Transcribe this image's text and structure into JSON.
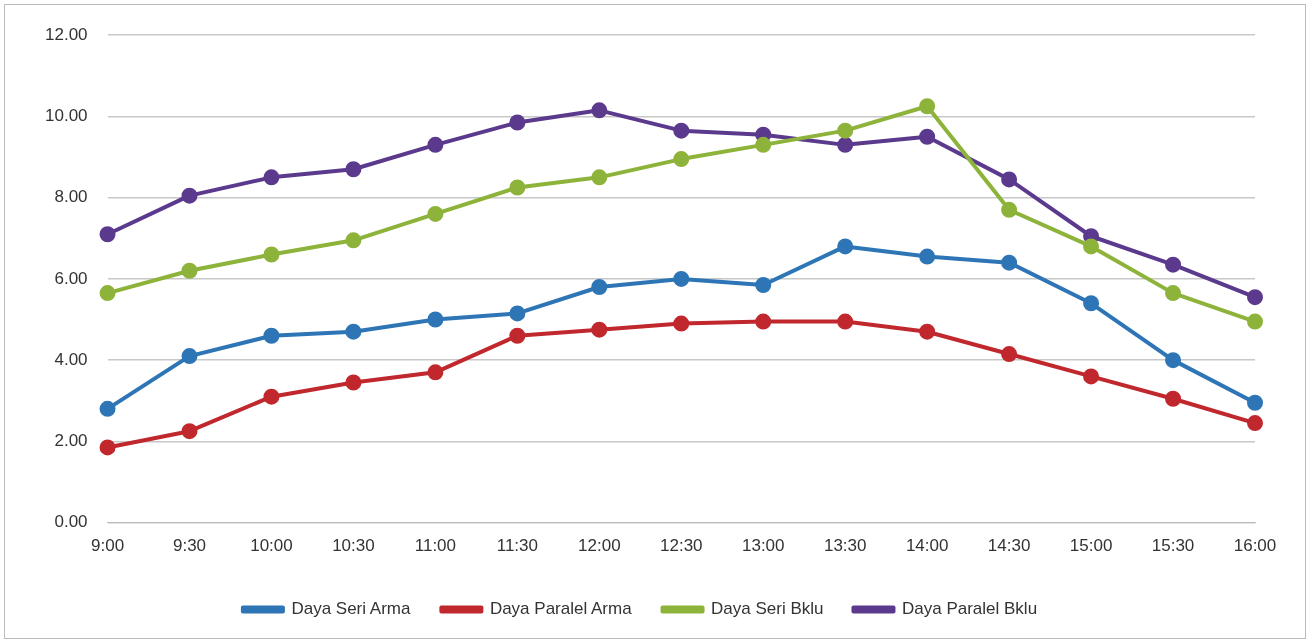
{
  "chart_data": {
    "type": "line",
    "categories": [
      "9:00",
      "9:30",
      "10:00",
      "10:30",
      "11:00",
      "11:30",
      "12:00",
      "12:30",
      "13:00",
      "13:30",
      "14:00",
      "14:30",
      "15:00",
      "15:30",
      "16:00"
    ],
    "series": [
      {
        "name": "Daya Seri Arma",
        "color": "#2e75b6",
        "values": [
          2.8,
          4.1,
          4.6,
          4.7,
          5.0,
          5.15,
          5.8,
          6.0,
          5.85,
          6.8,
          6.55,
          6.4,
          5.4,
          4.0,
          2.95
        ]
      },
      {
        "name": "Daya Paralel Arma",
        "color": "#c0282d",
        "values": [
          1.85,
          2.25,
          3.1,
          3.45,
          3.7,
          4.6,
          4.75,
          4.9,
          4.95,
          4.95,
          4.7,
          4.15,
          3.6,
          3.05,
          2.45
        ]
      },
      {
        "name": "Daya Seri Bklu",
        "color": "#8db33a",
        "values": [
          5.65,
          6.2,
          6.6,
          6.95,
          7.6,
          8.25,
          8.5,
          8.95,
          9.3,
          9.65,
          10.25,
          7.7,
          6.8,
          5.65,
          4.95
        ]
      },
      {
        "name": "Daya Paralel Bklu",
        "color": "#5b3a8e",
        "values": [
          7.1,
          8.05,
          8.5,
          8.7,
          9.3,
          9.85,
          10.15,
          9.65,
          9.55,
          9.3,
          9.5,
          8.45,
          7.05,
          6.35,
          5.55
        ]
      }
    ],
    "ylim": [
      0,
      12
    ],
    "yticks": [
      {
        "value": 0,
        "label": "0.00"
      },
      {
        "value": 2,
        "label": "2.00"
      },
      {
        "value": 4,
        "label": "4.00"
      },
      {
        "value": 6,
        "label": "6.00"
      },
      {
        "value": 8,
        "label": "8.00"
      },
      {
        "value": 10,
        "label": "10.00"
      },
      {
        "value": 12,
        "label": "12.00"
      }
    ],
    "grid": "y",
    "legend": "bottom",
    "marker": "circle",
    "line_style": "solid"
  }
}
